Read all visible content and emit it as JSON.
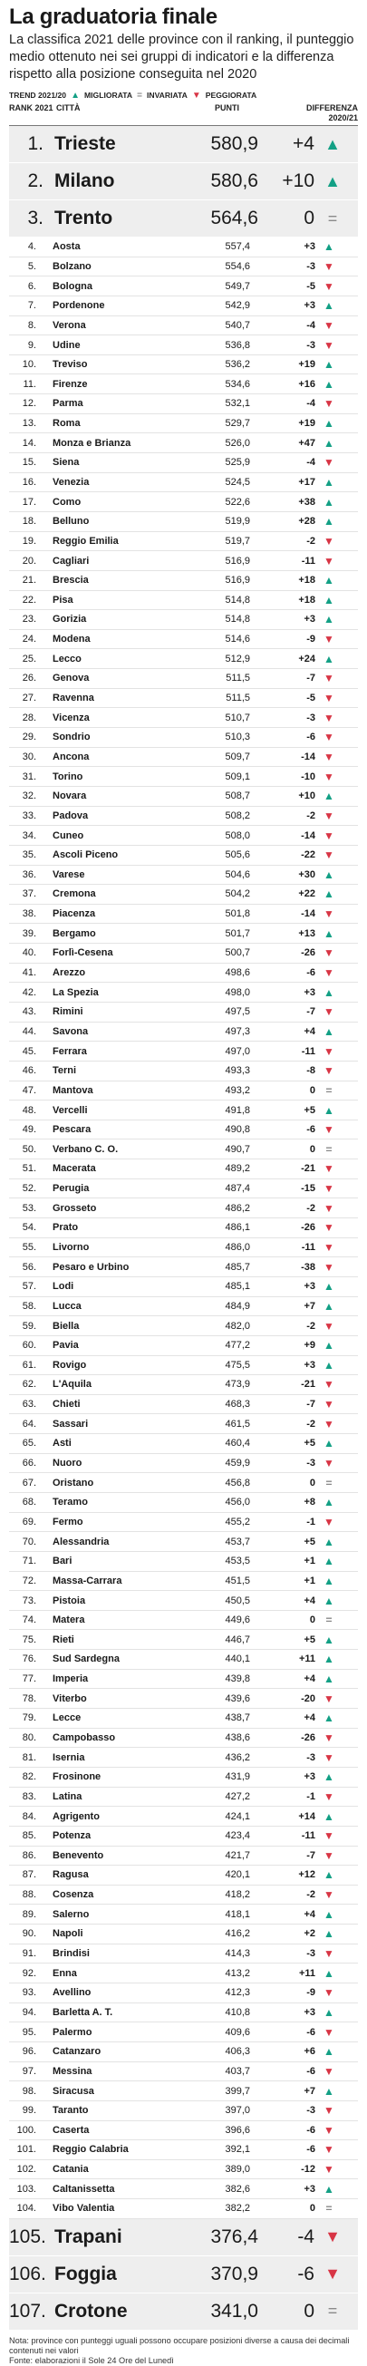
{
  "title": "La graduatoria finale",
  "subtitle": "La classifica 2021 delle province con il ranking, il punteggio medio ottenuto nei sei gruppi di indicatori e la differenza rispetto alla posizione conseguita nel 2020",
  "legend": {
    "trend_label": "TREND 2021/20",
    "improved": "MIGLIORATA",
    "unchanged": "INVARIATA",
    "worsened": "PEGGIORATA"
  },
  "columns": {
    "rank": "RANK 2021",
    "city": "CITTÀ",
    "points": "PUNTI",
    "diff": "DIFFERENZA 2020/21"
  },
  "rows": [
    [
      "1.",
      "Trieste",
      "580,9",
      "+4",
      "up"
    ],
    [
      "2.",
      "Milano",
      "580,6",
      "+10",
      "up"
    ],
    [
      "3.",
      "Trento",
      "564,6",
      "0",
      "eq"
    ],
    [
      "4.",
      "Aosta",
      "557,4",
      "+3",
      "up"
    ],
    [
      "5.",
      "Bolzano",
      "554,6",
      "-3",
      "down"
    ],
    [
      "6.",
      "Bologna",
      "549,7",
      "-5",
      "down"
    ],
    [
      "7.",
      "Pordenone",
      "542,9",
      "+3",
      "up"
    ],
    [
      "8.",
      "Verona",
      "540,7",
      "-4",
      "down"
    ],
    [
      "9.",
      "Udine",
      "536,8",
      "-3",
      "down"
    ],
    [
      "10.",
      "Treviso",
      "536,2",
      "+19",
      "up"
    ],
    [
      "11.",
      "Firenze",
      "534,6",
      "+16",
      "up"
    ],
    [
      "12.",
      "Parma",
      "532,1",
      "-4",
      "down"
    ],
    [
      "13.",
      "Roma",
      "529,7",
      "+19",
      "up"
    ],
    [
      "14.",
      "Monza e Brianza",
      "526,0",
      "+47",
      "up"
    ],
    [
      "15.",
      "Siena",
      "525,9",
      "-4",
      "down"
    ],
    [
      "16.",
      "Venezia",
      "524,5",
      "+17",
      "up"
    ],
    [
      "17.",
      "Como",
      "522,6",
      "+38",
      "up"
    ],
    [
      "18.",
      "Belluno",
      "519,9",
      "+28",
      "up"
    ],
    [
      "19.",
      "Reggio Emilia",
      "519,7",
      "-2",
      "down"
    ],
    [
      "20.",
      "Cagliari",
      "516,9",
      "-11",
      "down"
    ],
    [
      "21.",
      "Brescia",
      "516,9",
      "+18",
      "up"
    ],
    [
      "22.",
      "Pisa",
      "514,8",
      "+18",
      "up"
    ],
    [
      "23.",
      "Gorizia",
      "514,8",
      "+3",
      "up"
    ],
    [
      "24.",
      "Modena",
      "514,6",
      "-9",
      "down"
    ],
    [
      "25.",
      "Lecco",
      "512,9",
      "+24",
      "up"
    ],
    [
      "26.",
      "Genova",
      "511,5",
      "-7",
      "down"
    ],
    [
      "27.",
      "Ravenna",
      "511,5",
      "-5",
      "down"
    ],
    [
      "28.",
      "Vicenza",
      "510,7",
      "-3",
      "down"
    ],
    [
      "29.",
      "Sondrio",
      "510,3",
      "-6",
      "down"
    ],
    [
      "30.",
      "Ancona",
      "509,7",
      "-14",
      "down"
    ],
    [
      "31.",
      "Torino",
      "509,1",
      "-10",
      "down"
    ],
    [
      "32.",
      "Novara",
      "508,7",
      "+10",
      "up"
    ],
    [
      "33.",
      "Padova",
      "508,2",
      "-2",
      "down"
    ],
    [
      "34.",
      "Cuneo",
      "508,0",
      "-14",
      "down"
    ],
    [
      "35.",
      "Ascoli Piceno",
      "505,6",
      "-22",
      "down"
    ],
    [
      "36.",
      "Varese",
      "504,6",
      "+30",
      "up"
    ],
    [
      "37.",
      "Cremona",
      "504,2",
      "+22",
      "up"
    ],
    [
      "38.",
      "Piacenza",
      "501,8",
      "-14",
      "down"
    ],
    [
      "39.",
      "Bergamo",
      "501,7",
      "+13",
      "up"
    ],
    [
      "40.",
      "Forlì-Cesena",
      "500,7",
      "-26",
      "down"
    ],
    [
      "41.",
      "Arezzo",
      "498,6",
      "-6",
      "down"
    ],
    [
      "42.",
      "La Spezia",
      "498,0",
      "+3",
      "up"
    ],
    [
      "43.",
      "Rimini",
      "497,5",
      "-7",
      "down"
    ],
    [
      "44.",
      "Savona",
      "497,3",
      "+4",
      "up"
    ],
    [
      "45.",
      "Ferrara",
      "497,0",
      "-11",
      "down"
    ],
    [
      "46.",
      "Terni",
      "493,3",
      "-8",
      "down"
    ],
    [
      "47.",
      "Mantova",
      "493,2",
      "0",
      "eq"
    ],
    [
      "48.",
      "Vercelli",
      "491,8",
      "+5",
      "up"
    ],
    [
      "49.",
      "Pescara",
      "490,8",
      "-6",
      "down"
    ],
    [
      "50.",
      "Verbano C. O.",
      "490,7",
      "0",
      "eq"
    ],
    [
      "51.",
      "Macerata",
      "489,2",
      "-21",
      "down"
    ],
    [
      "52.",
      "Perugia",
      "487,4",
      "-15",
      "down"
    ],
    [
      "53.",
      "Grosseto",
      "486,2",
      "-2",
      "down"
    ],
    [
      "54.",
      "Prato",
      "486,1",
      "-26",
      "down"
    ],
    [
      "55.",
      "Livorno",
      "486,0",
      "-11",
      "down"
    ],
    [
      "56.",
      "Pesaro e Urbino",
      "485,7",
      "-38",
      "down"
    ],
    [
      "57.",
      "Lodi",
      "485,1",
      "+3",
      "up"
    ],
    [
      "58.",
      "Lucca",
      "484,9",
      "+7",
      "up"
    ],
    [
      "59.",
      "Biella",
      "482,0",
      "-2",
      "down"
    ],
    [
      "60.",
      "Pavia",
      "477,2",
      "+9",
      "up"
    ],
    [
      "61.",
      "Rovigo",
      "475,5",
      "+3",
      "up"
    ],
    [
      "62.",
      "L'Aquila",
      "473,9",
      "-21",
      "down"
    ],
    [
      "63.",
      "Chieti",
      "468,3",
      "-7",
      "down"
    ],
    [
      "64.",
      "Sassari",
      "461,5",
      "-2",
      "down"
    ],
    [
      "65.",
      "Asti",
      "460,4",
      "+5",
      "up"
    ],
    [
      "66.",
      "Nuoro",
      "459,9",
      "-3",
      "down"
    ],
    [
      "67.",
      "Oristano",
      "456,8",
      "0",
      "eq"
    ],
    [
      "68.",
      "Teramo",
      "456,0",
      "+8",
      "up"
    ],
    [
      "69.",
      "Fermo",
      "455,2",
      "-1",
      "down"
    ],
    [
      "70.",
      "Alessandria",
      "453,7",
      "+5",
      "up"
    ],
    [
      "71.",
      "Bari",
      "453,5",
      "+1",
      "up"
    ],
    [
      "72.",
      "Massa-Carrara",
      "451,5",
      "+1",
      "up"
    ],
    [
      "73.",
      "Pistoia",
      "450,5",
      "+4",
      "up"
    ],
    [
      "74.",
      "Matera",
      "449,6",
      "0",
      "eq"
    ],
    [
      "75.",
      "Rieti",
      "446,7",
      "+5",
      "up"
    ],
    [
      "76.",
      "Sud Sardegna",
      "440,1",
      "+11",
      "up"
    ],
    [
      "77.",
      "Imperia",
      "439,8",
      "+4",
      "up"
    ],
    [
      "78.",
      "Viterbo",
      "439,6",
      "-20",
      "down"
    ],
    [
      "79.",
      "Lecce",
      "438,7",
      "+4",
      "up"
    ],
    [
      "80.",
      "Campobasso",
      "438,6",
      "-26",
      "down"
    ],
    [
      "81.",
      "Isernia",
      "436,2",
      "-3",
      "down"
    ],
    [
      "82.",
      "Frosinone",
      "431,9",
      "+3",
      "up"
    ],
    [
      "83.",
      "Latina",
      "427,2",
      "-1",
      "down"
    ],
    [
      "84.",
      "Agrigento",
      "424,1",
      "+14",
      "up"
    ],
    [
      "85.",
      "Potenza",
      "423,4",
      "-11",
      "down"
    ],
    [
      "86.",
      "Benevento",
      "421,7",
      "-7",
      "down"
    ],
    [
      "87.",
      "Ragusa",
      "420,1",
      "+12",
      "up"
    ],
    [
      "88.",
      "Cosenza",
      "418,2",
      "-2",
      "down"
    ],
    [
      "89.",
      "Salerno",
      "418,1",
      "+4",
      "up"
    ],
    [
      "90.",
      "Napoli",
      "416,2",
      "+2",
      "up"
    ],
    [
      "91.",
      "Brindisi",
      "414,3",
      "-3",
      "down"
    ],
    [
      "92.",
      "Enna",
      "413,2",
      "+11",
      "up"
    ],
    [
      "93.",
      "Avellino",
      "412,3",
      "-9",
      "down"
    ],
    [
      "94.",
      "Barletta A. T.",
      "410,8",
      "+3",
      "up"
    ],
    [
      "95.",
      "Palermo",
      "409,6",
      "-6",
      "down"
    ],
    [
      "96.",
      "Catanzaro",
      "406,3",
      "+6",
      "up"
    ],
    [
      "97.",
      "Messina",
      "403,7",
      "-6",
      "down"
    ],
    [
      "98.",
      "Siracusa",
      "399,7",
      "+7",
      "up"
    ],
    [
      "99.",
      "Taranto",
      "397,0",
      "-3",
      "down"
    ],
    [
      "100.",
      "Caserta",
      "396,6",
      "-6",
      "down"
    ],
    [
      "101.",
      "Reggio Calabria",
      "392,1",
      "-6",
      "down"
    ],
    [
      "102.",
      "Catania",
      "389,0",
      "-12",
      "down"
    ],
    [
      "103.",
      "Caltanissetta",
      "382,6",
      "+3",
      "up"
    ],
    [
      "104.",
      "Vibo Valentia",
      "382,2",
      "0",
      "eq"
    ],
    [
      "105.",
      "Trapani",
      "376,4",
      "-4",
      "down"
    ],
    [
      "106.",
      "Foggia",
      "370,9",
      "-6",
      "down"
    ],
    [
      "107.",
      "Crotone",
      "341,0",
      "0",
      "eq"
    ]
  ],
  "note": "Nota: province con punteggi uguali possono occupare posizioni diverse a causa dei decimali contenuti nei valori",
  "source": "Fonte: elaborazioni il Sole 24 Ore del Lunedì"
}
